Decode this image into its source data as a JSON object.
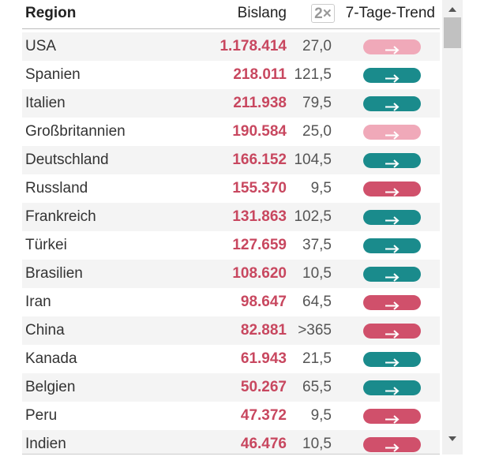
{
  "header": {
    "region": "Region",
    "cases": "Bislang",
    "doubling": "2×",
    "trend": "7-Tage-Trend"
  },
  "rows": [
    {
      "region": "USA",
      "cases": "1.178.414",
      "doubling": "27,0",
      "trend_color": "#f0a9b9"
    },
    {
      "region": "Spanien",
      "cases": "218.011",
      "doubling": "121,5",
      "trend_color": "#1a8b8c"
    },
    {
      "region": "Italien",
      "cases": "211.938",
      "doubling": "79,5",
      "trend_color": "#1a8b8c"
    },
    {
      "region": "Großbritannien",
      "cases": "190.584",
      "doubling": "25,0",
      "trend_color": "#f0a9b9"
    },
    {
      "region": "Deutschland",
      "cases": "166.152",
      "doubling": "104,5",
      "trend_color": "#1a8b8c"
    },
    {
      "region": "Russland",
      "cases": "155.370",
      "doubling": "9,5",
      "trend_color": "#d0506b"
    },
    {
      "region": "Frankreich",
      "cases": "131.863",
      "doubling": "102,5",
      "trend_color": "#1a8b8c"
    },
    {
      "region": "Türkei",
      "cases": "127.659",
      "doubling": "37,5",
      "trend_color": "#1a8b8c"
    },
    {
      "region": "Brasilien",
      "cases": "108.620",
      "doubling": "10,5",
      "trend_color": "#1a8b8c"
    },
    {
      "region": "Iran",
      "cases": "98.647",
      "doubling": "64,5",
      "trend_color": "#d0506b"
    },
    {
      "region": "China",
      "cases": "82.881",
      "doubling": ">365",
      "trend_color": "#d0506b"
    },
    {
      "region": "Kanada",
      "cases": "61.943",
      "doubling": "21,5",
      "trend_color": "#1a8b8c"
    },
    {
      "region": "Belgien",
      "cases": "50.267",
      "doubling": "65,5",
      "trend_color": "#1a8b8c"
    },
    {
      "region": "Peru",
      "cases": "47.372",
      "doubling": "9,5",
      "trend_color": "#d0506b"
    },
    {
      "region": "Indien",
      "cases": "46.476",
      "doubling": "10,5",
      "trend_color": "#d0506b"
    }
  ]
}
